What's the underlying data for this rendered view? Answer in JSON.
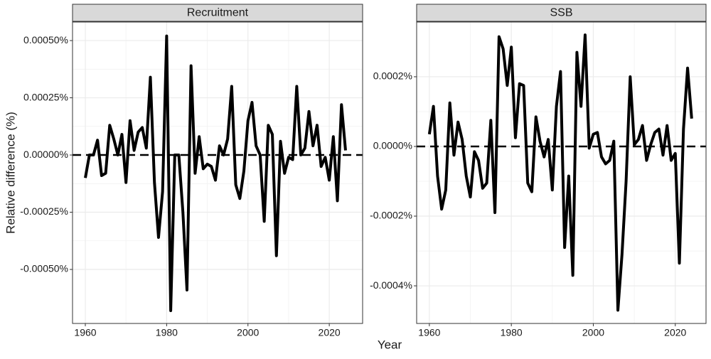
{
  "xlabel": "Year",
  "ylabel": "Relative difference (%)",
  "chart_data": [
    {
      "type": "line",
      "title": "Recruitment",
      "x": [
        1960,
        1961,
        1962,
        1963,
        1964,
        1965,
        1966,
        1967,
        1968,
        1969,
        1970,
        1971,
        1972,
        1973,
        1974,
        1975,
        1976,
        1977,
        1978,
        1979,
        1980,
        1981,
        1982,
        1983,
        1984,
        1985,
        1986,
        1987,
        1988,
        1989,
        1990,
        1991,
        1992,
        1993,
        1994,
        1995,
        1996,
        1997,
        1998,
        1999,
        2000,
        2001,
        2002,
        2003,
        2004,
        2005,
        2006,
        2007,
        2008,
        2009,
        2010,
        2011,
        2012,
        2013,
        2014,
        2015,
        2016,
        2017,
        2018,
        2019,
        2020,
        2021,
        2022,
        2023,
        2024
      ],
      "series": [
        {
          "name": "Recruitment",
          "color": "#000000",
          "values": [
            -0.0001,
            0,
            0,
            6.5e-05,
            -9e-05,
            -8e-05,
            0.00013,
            7e-05,
            0,
            9e-05,
            -0.00012,
            0.00015,
            2e-05,
            0.0001,
            0.00012,
            3e-05,
            0.00034,
            -0.00012,
            -0.00036,
            -0.00016,
            0.00052,
            -0.00068,
            0,
            0,
            -0.00025,
            -0.00059,
            0.00039,
            -8e-05,
            8e-05,
            -6e-05,
            -4e-05,
            -5e-05,
            -0.00011,
            4e-05,
            0,
            7e-05,
            0.0003,
            -0.00013,
            -0.00019,
            -7e-05,
            0.00015,
            0.00023,
            4e-05,
            0,
            -0.00029,
            0.00013,
            9e-05,
            -0.00044,
            6e-05,
            -8e-05,
            -1e-05,
            -2e-05,
            0.0003,
            0,
            3e-05,
            0.00019,
            4e-05,
            0.00013,
            -5e-05,
            -1e-05,
            -0.00011,
            8e-05,
            -0.0002,
            0.00022,
            2e-05
          ]
        }
      ],
      "reference_line": 0,
      "xlim": [
        1956.85,
        2028.2
      ],
      "xticks": [
        1960,
        1980,
        2000,
        2020
      ],
      "ylim": [
        -0.000736,
        0.000581
      ],
      "yticks": [
        {
          "value": -0.0005,
          "label": "-0.00050%"
        },
        {
          "value": -0.00025,
          "label": "-0.00025%"
        },
        {
          "value": 0,
          "label": "0.00000%"
        },
        {
          "value": 0.00025,
          "label": "0.00025%"
        },
        {
          "value": 0.0005,
          "label": "0.00050%"
        }
      ],
      "grid": true
    },
    {
      "type": "line",
      "title": "SSB",
      "x": [
        1960,
        1961,
        1962,
        1963,
        1964,
        1965,
        1966,
        1967,
        1968,
        1969,
        1970,
        1971,
        1972,
        1973,
        1974,
        1975,
        1976,
        1977,
        1978,
        1979,
        1980,
        1981,
        1982,
        1983,
        1984,
        1985,
        1986,
        1987,
        1988,
        1989,
        1990,
        1991,
        1992,
        1993,
        1994,
        1995,
        1996,
        1997,
        1998,
        1999,
        2000,
        2001,
        2002,
        2003,
        2004,
        2005,
        2006,
        2007,
        2008,
        2009,
        2010,
        2011,
        2012,
        2013,
        2014,
        2015,
        2016,
        2017,
        2018,
        2019,
        2020,
        2021,
        2022,
        2023,
        2024
      ],
      "series": [
        {
          "name": "SSB",
          "color": "#000000",
          "values": [
            3.5e-05,
            0.000115,
            -8.5e-05,
            -0.00018,
            -0.000125,
            0.000125,
            -2.5e-05,
            7e-05,
            2e-05,
            -8.5e-05,
            -0.000145,
            -1.5e-05,
            -4e-05,
            -0.00012,
            -0.000105,
            7.5e-05,
            -0.00019,
            0.000315,
            0.00028,
            0.000175,
            0.000285,
            2.5e-05,
            0.00018,
            0.000175,
            -0.000105,
            -0.00013,
            8.5e-05,
            1.5e-05,
            -3e-05,
            2e-05,
            -0.000125,
            0.000115,
            0.000215,
            -0.00029,
            -8.5e-05,
            -0.00037,
            0.00027,
            0.000115,
            0.00032,
            -5e-06,
            3.5e-05,
            4e-05,
            -3e-05,
            -5e-05,
            -4e-05,
            1.5e-05,
            -0.00047,
            -0.00031,
            -0.0001,
            0.0002,
            5e-06,
            2e-05,
            6e-05,
            -4e-05,
            5e-06,
            4e-05,
            5e-05,
            -2.5e-05,
            6e-05,
            -4e-05,
            -2e-05,
            -0.000335,
            5e-05,
            0.000225,
            8e-05
          ]
        }
      ],
      "reference_line": 0,
      "xlim": [
        1956.9,
        2027.5
      ],
      "xticks": [
        1960,
        1980,
        2000,
        2020
      ],
      "ylim": [
        -0.000508,
        0.000357
      ],
      "yticks": [
        {
          "value": -0.0004,
          "label": "-0.0004%"
        },
        {
          "value": -0.0002,
          "label": "-0.0002%"
        },
        {
          "value": 0,
          "label": "0.0000%"
        },
        {
          "value": 0.0002,
          "label": "0.0002%"
        }
      ],
      "grid": true
    }
  ]
}
